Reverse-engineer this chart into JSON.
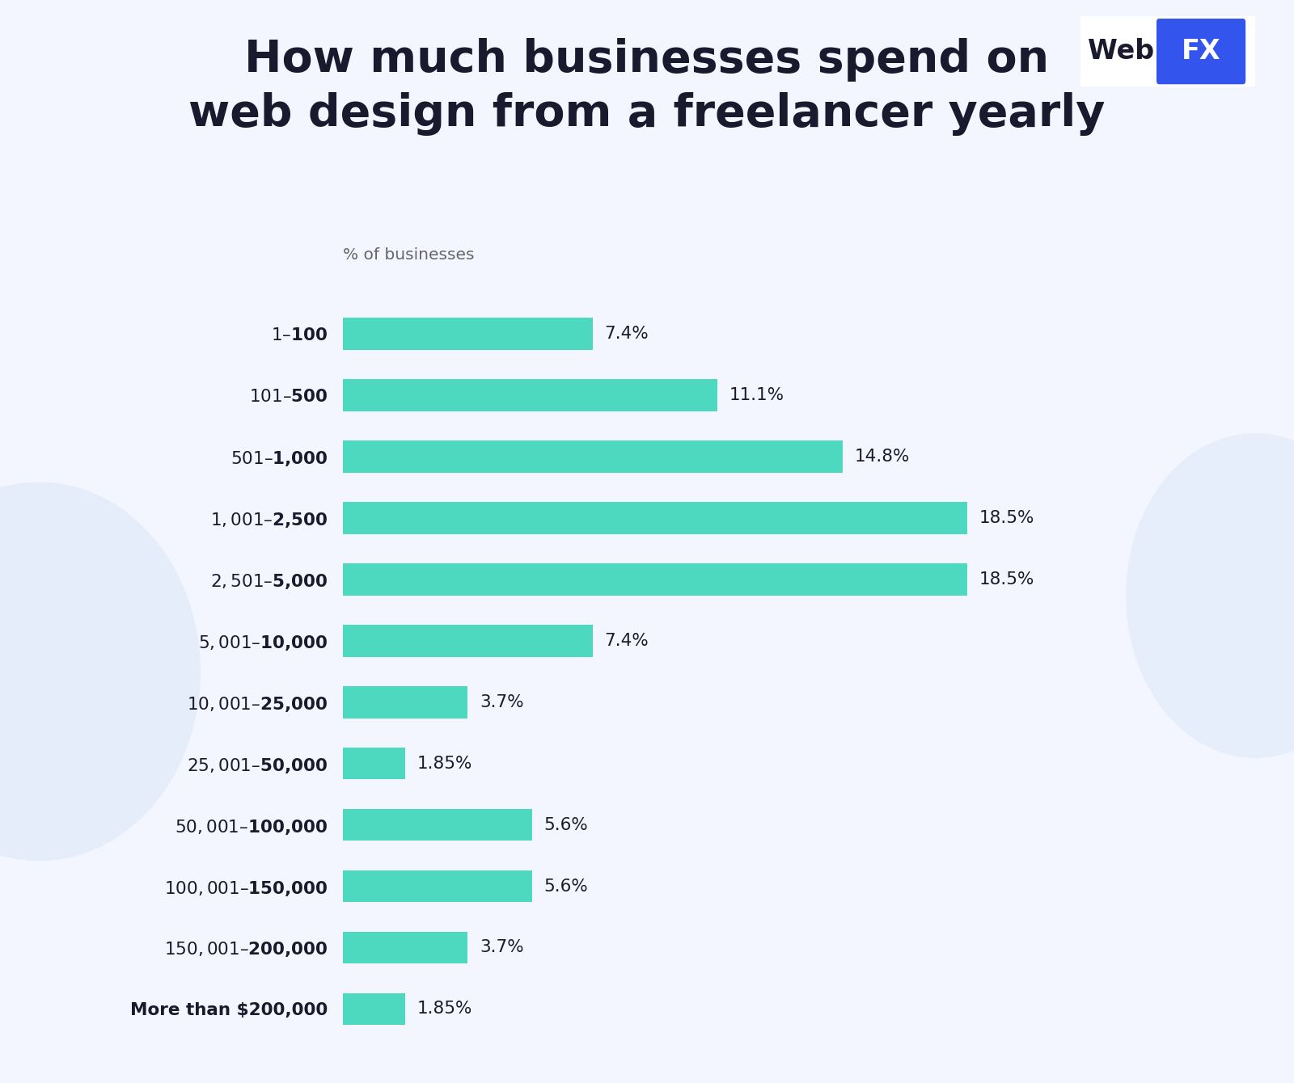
{
  "title_line1": "How much businesses spend on",
  "title_line2": "web design from a freelancer yearly",
  "xlabel": "% of businesses",
  "categories": [
    "$1 – $100",
    "$101 – $500",
    "$501 – $1,000",
    "$1,001– $2,500",
    "$2,501 – $5,000",
    "$5,001 – $10,000",
    "$10,001 – $25,000",
    "$25,001 – $50,000",
    "$50,001 – $100,000",
    "$100,001 – $150,000",
    "$150,001 – $200,000",
    "More than $200,000"
  ],
  "values": [
    7.4,
    11.1,
    14.8,
    18.5,
    18.5,
    7.4,
    3.7,
    1.85,
    5.6,
    5.6,
    3.7,
    1.85
  ],
  "labels": [
    "7.4%",
    "11.1%",
    "14.8%",
    "18.5%",
    "18.5%",
    "7.4%",
    "3.7%",
    "1.85%",
    "5.6%",
    "5.6%",
    "3.7%",
    "1.85%"
  ],
  "bar_color": "#4DD9C0",
  "bg_color_main": "#f4f6ff",
  "bg_color_white": "#ffffff",
  "title_color": "#1a1a2e",
  "label_color": "#1a1a2e",
  "value_label_color": "#1a1a2e",
  "xlabel_color": "#666666",
  "webfx_box_color": "#3355ee",
  "xlim": [
    0,
    23
  ],
  "bar_height": 0.52
}
